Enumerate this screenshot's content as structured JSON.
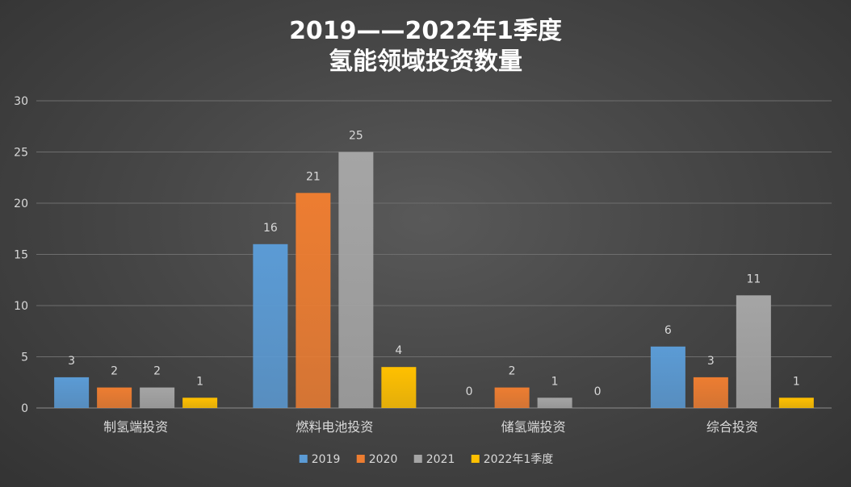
{
  "chart_data": {
    "type": "bar",
    "title": "2019——2022年1季度",
    "subtitle": "氢能领域投资数量",
    "categories": [
      "制氢端投资",
      "燃料电池投资",
      "储氢端投资",
      "综合投资"
    ],
    "series": [
      {
        "name": "2019",
        "color": "#5b9bd5",
        "values": [
          3,
          16,
          0,
          6
        ]
      },
      {
        "name": "2020",
        "color": "#ed7d31",
        "values": [
          2,
          21,
          2,
          3
        ]
      },
      {
        "name": "2021",
        "color": "#a5a5a5",
        "values": [
          2,
          25,
          1,
          11
        ]
      },
      {
        "name": "2022年1季度",
        "color": "#ffc000",
        "values": [
          1,
          4,
          0,
          1
        ]
      }
    ],
    "ylim": [
      0,
      30
    ],
    "yticks": [
      0,
      5,
      10,
      15,
      20,
      25,
      30
    ],
    "grid": true,
    "legend_position": "bottom",
    "xlabel": "",
    "ylabel": ""
  }
}
